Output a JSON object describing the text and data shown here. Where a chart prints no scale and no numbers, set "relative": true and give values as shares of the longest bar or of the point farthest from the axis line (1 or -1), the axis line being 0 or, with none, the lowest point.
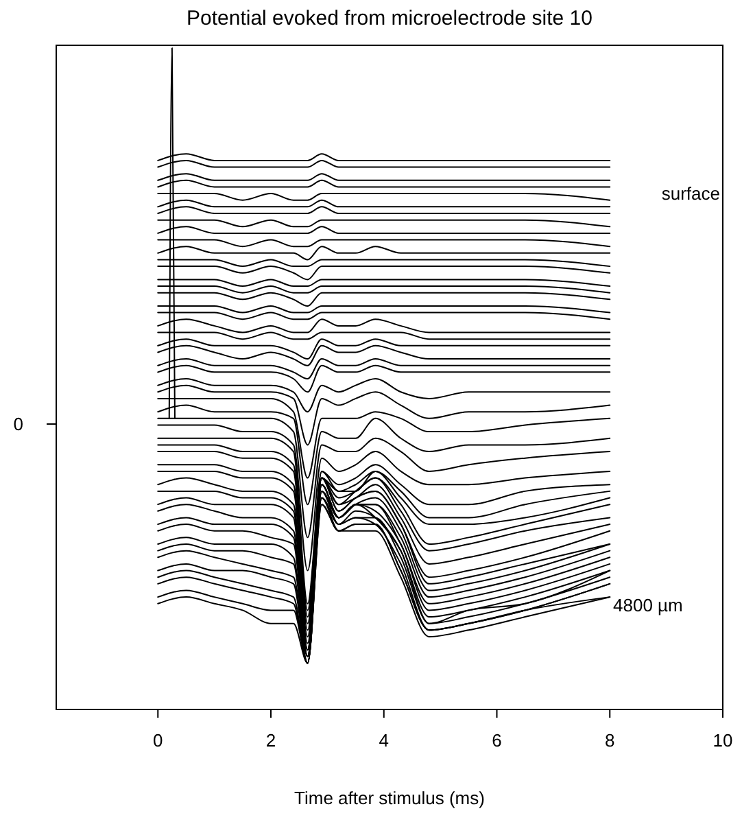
{
  "chart_data": {
    "type": "line",
    "title": "Potential evoked from microelectrode site 10",
    "xlabel": "Time after stimulus (ms)",
    "relative": true,
    "xlim": [
      -1.8,
      10
    ],
    "xticks": [
      0,
      2,
      4,
      6,
      8,
      10
    ],
    "x": [
      0,
      0.5,
      1,
      1.5,
      2,
      2.4,
      2.65,
      2.9,
      3.2,
      3.5,
      3.85,
      4.3,
      4.8,
      5.5,
      6.5,
      8
    ],
    "annotations": [
      "0",
      "surface",
      "4800 µm"
    ],
    "series": [
      {
        "color": "#000000",
        "values": [
          0.83,
          0.84,
          0.83,
          0.83,
          0.83,
          0.83,
          0.83,
          0.84,
          0.83,
          0.83,
          0.83,
          0.83,
          0.83,
          0.83,
          0.83,
          0.83
        ]
      },
      {
        "color": "#000000",
        "values": [
          0.82,
          0.83,
          0.82,
          0.82,
          0.82,
          0.82,
          0.82,
          0.83,
          0.82,
          0.82,
          0.82,
          0.82,
          0.82,
          0.82,
          0.82,
          0.82
        ]
      },
      {
        "color": "#000000",
        "values": [
          0.8,
          0.81,
          0.8,
          0.8,
          0.8,
          0.8,
          0.8,
          0.81,
          0.8,
          0.8,
          0.8,
          0.8,
          0.8,
          0.8,
          0.8,
          0.8
        ]
      },
      {
        "color": "#000000",
        "values": [
          0.79,
          0.8,
          0.79,
          0.79,
          0.79,
          0.79,
          0.79,
          0.8,
          0.79,
          0.79,
          0.79,
          0.79,
          0.79,
          0.79,
          0.79,
          0.79
        ]
      },
      {
        "color": "#000000",
        "values": [
          0.78,
          0.78,
          0.78,
          0.77,
          0.78,
          0.77,
          0.77,
          0.78,
          0.78,
          0.78,
          0.78,
          0.78,
          0.78,
          0.78,
          0.78,
          0.77
        ]
      },
      {
        "color": "#000000",
        "values": [
          0.76,
          0.77,
          0.76,
          0.76,
          0.76,
          0.76,
          0.76,
          0.77,
          0.76,
          0.76,
          0.76,
          0.76,
          0.76,
          0.76,
          0.76,
          0.76
        ]
      },
      {
        "color": "#000000",
        "values": [
          0.75,
          0.76,
          0.75,
          0.75,
          0.75,
          0.75,
          0.75,
          0.76,
          0.75,
          0.75,
          0.75,
          0.75,
          0.75,
          0.75,
          0.75,
          0.75
        ]
      },
      {
        "color": "#000000",
        "values": [
          0.74,
          0.74,
          0.74,
          0.73,
          0.74,
          0.73,
          0.73,
          0.74,
          0.74,
          0.74,
          0.74,
          0.74,
          0.74,
          0.74,
          0.74,
          0.73
        ]
      },
      {
        "color": "#000000",
        "values": [
          0.72,
          0.73,
          0.72,
          0.72,
          0.72,
          0.72,
          0.72,
          0.73,
          0.72,
          0.72,
          0.72,
          0.72,
          0.72,
          0.72,
          0.72,
          0.72
        ]
      },
      {
        "color": "#000000",
        "values": [
          0.71,
          0.71,
          0.71,
          0.7,
          0.71,
          0.7,
          0.7,
          0.71,
          0.71,
          0.71,
          0.71,
          0.71,
          0.71,
          0.71,
          0.71,
          0.7
        ]
      },
      {
        "color": "#000000",
        "values": [
          0.69,
          0.7,
          0.69,
          0.69,
          0.69,
          0.69,
          0.68,
          0.7,
          0.69,
          0.69,
          0.7,
          0.69,
          0.69,
          0.69,
          0.69,
          0.69
        ]
      },
      {
        "color": "#000000",
        "values": [
          0.68,
          0.68,
          0.68,
          0.67,
          0.68,
          0.67,
          0.67,
          0.68,
          0.68,
          0.68,
          0.68,
          0.68,
          0.68,
          0.68,
          0.68,
          0.67
        ]
      },
      {
        "color": "#000000",
        "values": [
          0.67,
          0.67,
          0.67,
          0.66,
          0.67,
          0.66,
          0.65,
          0.67,
          0.67,
          0.67,
          0.67,
          0.67,
          0.67,
          0.67,
          0.67,
          0.66
        ]
      },
      {
        "color": "#000000",
        "values": [
          0.65,
          0.65,
          0.65,
          0.64,
          0.65,
          0.64,
          0.64,
          0.65,
          0.65,
          0.65,
          0.65,
          0.65,
          0.65,
          0.65,
          0.65,
          0.64
        ]
      },
      {
        "color": "#000000",
        "values": [
          0.64,
          0.64,
          0.64,
          0.63,
          0.64,
          0.63,
          0.63,
          0.64,
          0.64,
          0.64,
          0.64,
          0.64,
          0.64,
          0.64,
          0.64,
          0.63
        ]
      },
      {
        "color": "#000000",
        "values": [
          0.63,
          0.63,
          0.63,
          0.62,
          0.63,
          0.62,
          0.61,
          0.63,
          0.63,
          0.63,
          0.63,
          0.63,
          0.63,
          0.63,
          0.63,
          0.62
        ]
      },
      {
        "color": "#000000",
        "values": [
          0.61,
          0.61,
          0.61,
          0.6,
          0.61,
          0.6,
          0.6,
          0.61,
          0.61,
          0.61,
          0.61,
          0.61,
          0.61,
          0.61,
          0.61,
          0.6
        ]
      },
      {
        "color": "#000000",
        "values": [
          0.6,
          0.6,
          0.6,
          0.59,
          0.6,
          0.59,
          0.59,
          0.6,
          0.6,
          0.6,
          0.6,
          0.6,
          0.6,
          0.6,
          0.6,
          0.59
        ]
      },
      {
        "color": "#000000",
        "values": [
          0.58,
          0.59,
          0.58,
          0.57,
          0.58,
          0.57,
          0.57,
          0.59,
          0.58,
          0.58,
          0.59,
          0.58,
          0.57,
          0.57,
          0.57,
          0.57
        ]
      },
      {
        "color": "#000000",
        "values": [
          0.57,
          0.57,
          0.57,
          0.56,
          0.57,
          0.56,
          0.56,
          0.57,
          0.57,
          0.57,
          0.57,
          0.57,
          0.56,
          0.56,
          0.56,
          0.56
        ]
      },
      {
        "color": "#000000",
        "values": [
          0.55,
          0.56,
          0.55,
          0.55,
          0.55,
          0.54,
          0.53,
          0.56,
          0.55,
          0.55,
          0.56,
          0.55,
          0.55,
          0.55,
          0.55,
          0.55
        ]
      },
      {
        "color": "#000000",
        "values": [
          0.54,
          0.55,
          0.54,
          0.53,
          0.54,
          0.53,
          0.52,
          0.55,
          0.54,
          0.54,
          0.55,
          0.54,
          0.53,
          0.53,
          0.53,
          0.53
        ]
      },
      {
        "color": "#000000",
        "values": [
          0.52,
          0.53,
          0.52,
          0.52,
          0.52,
          0.51,
          0.5,
          0.53,
          0.52,
          0.52,
          0.53,
          0.52,
          0.52,
          0.52,
          0.52,
          0.52
        ]
      },
      {
        "color": "#000000",
        "values": [
          0.51,
          0.52,
          0.51,
          0.51,
          0.51,
          0.5,
          0.48,
          0.52,
          0.51,
          0.51,
          0.52,
          0.51,
          0.51,
          0.51,
          0.51,
          0.51
        ]
      },
      {
        "color": "#000000",
        "values": [
          0.49,
          0.5,
          0.49,
          0.49,
          0.49,
          0.48,
          0.45,
          0.49,
          0.48,
          0.49,
          0.5,
          0.48,
          0.47,
          0.48,
          0.48,
          0.48
        ]
      },
      {
        "color": "#000000",
        "values": [
          0.48,
          0.49,
          0.48,
          0.48,
          0.48,
          0.47,
          0.4,
          0.47,
          0.46,
          0.47,
          0.48,
          0.46,
          0.44,
          0.45,
          0.45,
          0.46
        ]
      },
      {
        "color": "#000000",
        "values": [
          0.47,
          0.47,
          0.47,
          0.47,
          0.47,
          0.45,
          0.35,
          0.44,
          0.44,
          0.44,
          0.45,
          0.44,
          0.42,
          0.42,
          0.43,
          0.44
        ]
      },
      {
        "color": "#000000",
        "values": [
          0.45,
          0.46,
          0.45,
          0.45,
          0.45,
          0.44,
          0.31,
          0.42,
          0.41,
          0.41,
          0.44,
          0.41,
          0.39,
          0.4,
          0.4,
          0.41
        ]
      },
      {
        "color": "#000000",
        "values": [
          0.44,
          0.44,
          0.44,
          0.44,
          0.44,
          0.42,
          0.26,
          0.4,
          0.39,
          0.39,
          0.41,
          0.39,
          0.36,
          0.37,
          0.38,
          0.39
        ]
      },
      {
        "color": "#000000",
        "values": [
          0.43,
          0.43,
          0.43,
          0.42,
          0.42,
          0.4,
          0.21,
          0.38,
          0.36,
          0.37,
          0.39,
          0.36,
          0.34,
          0.34,
          0.35,
          0.36
        ]
      },
      {
        "color": "#000000",
        "values": [
          0.41,
          0.41,
          0.41,
          0.41,
          0.41,
          0.39,
          0.16,
          0.36,
          0.34,
          0.35,
          0.37,
          0.34,
          0.31,
          0.31,
          0.33,
          0.34
        ]
      },
      {
        "color": "#000000",
        "values": [
          0.4,
          0.4,
          0.4,
          0.39,
          0.39,
          0.37,
          0.15,
          0.36,
          0.33,
          0.34,
          0.36,
          0.33,
          0.29,
          0.29,
          0.31,
          0.33
        ]
      },
      {
        "color": "#000000",
        "values": [
          0.39,
          0.39,
          0.39,
          0.38,
          0.38,
          0.36,
          0.14,
          0.35,
          0.33,
          0.33,
          0.36,
          0.32,
          0.28,
          0.28,
          0.29,
          0.32
        ]
      },
      {
        "color": "#000000",
        "values": [
          0.37,
          0.37,
          0.37,
          0.36,
          0.36,
          0.34,
          0.13,
          0.35,
          0.32,
          0.33,
          0.35,
          0.31,
          0.25,
          0.26,
          0.28,
          0.31
        ]
      },
      {
        "color": "#000000",
        "values": [
          0.36,
          0.36,
          0.36,
          0.35,
          0.35,
          0.33,
          0.12,
          0.35,
          0.31,
          0.33,
          0.35,
          0.3,
          0.24,
          0.25,
          0.27,
          0.29
        ]
      },
      {
        "color": "#000000",
        "values": [
          0.34,
          0.35,
          0.34,
          0.33,
          0.33,
          0.31,
          0.11,
          0.35,
          0.31,
          0.32,
          0.34,
          0.29,
          0.22,
          0.23,
          0.25,
          0.28
        ]
      },
      {
        "color": "#000000",
        "values": [
          0.33,
          0.33,
          0.33,
          0.32,
          0.32,
          0.3,
          0.1,
          0.35,
          0.3,
          0.32,
          0.33,
          0.28,
          0.2,
          0.21,
          0.23,
          0.27
        ]
      },
      {
        "color": "#000000",
        "values": [
          0.31,
          0.32,
          0.31,
          0.31,
          0.31,
          0.29,
          0.09,
          0.35,
          0.3,
          0.32,
          0.33,
          0.28,
          0.19,
          0.2,
          0.22,
          0.25
        ]
      },
      {
        "color": "#000000",
        "values": [
          0.3,
          0.31,
          0.3,
          0.29,
          0.29,
          0.27,
          0.09,
          0.34,
          0.29,
          0.31,
          0.32,
          0.27,
          0.18,
          0.19,
          0.21,
          0.25
        ]
      },
      {
        "color": "#000000",
        "values": [
          0.28,
          0.29,
          0.28,
          0.28,
          0.28,
          0.26,
          0.09,
          0.34,
          0.29,
          0.31,
          0.31,
          0.26,
          0.17,
          0.18,
          0.2,
          0.24
        ]
      },
      {
        "color": "#000000",
        "values": [
          0.27,
          0.28,
          0.27,
          0.27,
          0.26,
          0.25,
          0.08,
          0.34,
          0.29,
          0.31,
          0.31,
          0.25,
          0.16,
          0.17,
          0.19,
          0.23
        ]
      },
      {
        "color": "#000000",
        "values": [
          0.25,
          0.26,
          0.25,
          0.25,
          0.25,
          0.23,
          0.08,
          0.33,
          0.29,
          0.31,
          0.3,
          0.25,
          0.15,
          0.16,
          0.18,
          0.22
        ]
      },
      {
        "color": "#000000",
        "values": [
          0.24,
          0.25,
          0.24,
          0.24,
          0.23,
          0.22,
          0.08,
          0.33,
          0.29,
          0.31,
          0.29,
          0.24,
          0.14,
          0.15,
          0.17,
          0.21
        ]
      },
      {
        "color": "#000000",
        "values": [
          0.23,
          0.24,
          0.23,
          0.22,
          0.21,
          0.2,
          0.08,
          0.33,
          0.28,
          0.3,
          0.29,
          0.24,
          0.13,
          0.15,
          0.16,
          0.21
        ]
      },
      {
        "color": "#000000",
        "values": [
          0.21,
          0.22,
          0.21,
          0.21,
          0.2,
          0.19,
          0.07,
          0.32,
          0.28,
          0.29,
          0.29,
          0.23,
          0.13,
          0.14,
          0.16,
          0.2
        ]
      },
      {
        "color": "#000000",
        "values": [
          0.2,
          0.21,
          0.2,
          0.19,
          0.18,
          0.17,
          0.07,
          0.32,
          0.28,
          0.29,
          0.28,
          0.22,
          0.12,
          0.13,
          0.15,
          0.19
        ]
      },
      {
        "color": "#000000",
        "values": [
          0.19,
          0.2,
          0.19,
          0.18,
          0.17,
          0.16,
          0.07,
          0.32,
          0.27,
          0.28,
          0.28,
          0.21,
          0.12,
          0.13,
          0.15,
          0.19
        ]
      },
      {
        "color": "#000000",
        "values": [
          0.17,
          0.18,
          0.17,
          0.16,
          0.15,
          0.15,
          0.07,
          0.31,
          0.27,
          0.28,
          0.28,
          0.21,
          0.12,
          0.13,
          0.15,
          0.17
        ]
      },
      {
        "color": "#000000",
        "values": [
          0.16,
          0.17,
          0.16,
          0.15,
          0.13,
          0.13,
          0.07,
          0.31,
          0.27,
          0.27,
          0.27,
          0.2,
          0.11,
          0.12,
          0.14,
          0.17
        ]
      },
      {
        "color": "#000000",
        "x": [
          0.2,
          0.25,
          0.3
        ],
        "values": [
          0.44,
          1,
          0.44
        ]
      }
    ]
  }
}
